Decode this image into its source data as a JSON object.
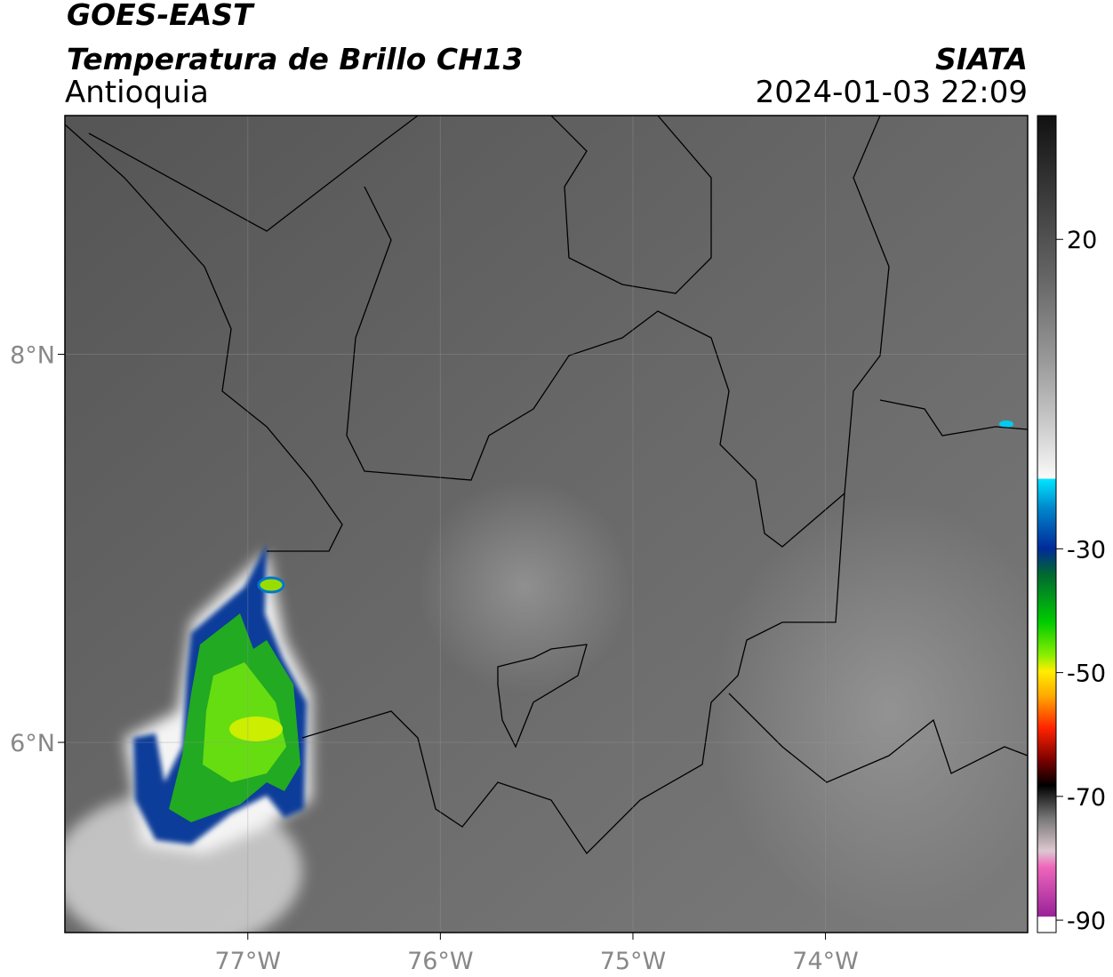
{
  "header": {
    "title": "GOES-EAST",
    "subtitle": "Temperatura de Brillo CH13",
    "region": "Antioquia",
    "source": "SIATA",
    "datetime": "2024-01-03 22:09"
  },
  "map": {
    "xlim": [
      -77.95,
      -72.95
    ],
    "ylim": [
      5.02,
      9.23
    ],
    "xticks": [
      {
        "value": -77,
        "label": "77°W"
      },
      {
        "value": -76,
        "label": "76°W"
      },
      {
        "value": -75,
        "label": "75°W"
      },
      {
        "value": -74,
        "label": "74°W"
      }
    ],
    "yticks": [
      {
        "value": 8,
        "label": "8°N"
      },
      {
        "value": 6,
        "label": "6°N"
      }
    ],
    "grid": true
  },
  "colorbar": {
    "lim": [
      -92,
      40
    ],
    "ticks": [
      20,
      -30,
      -50,
      -70,
      -90
    ]
  }
}
